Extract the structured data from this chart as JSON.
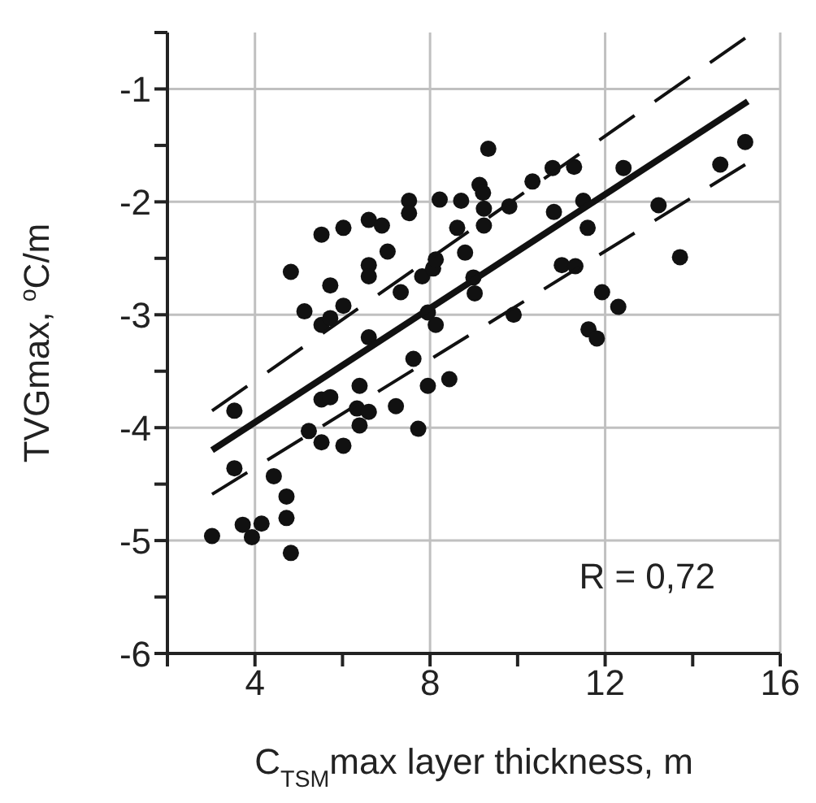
{
  "chart_data": {
    "type": "scatter",
    "xlabel": "C$_{TSM}$max layer thickness, m",
    "ylabel": "TVGmax, $^{o}$C/m",
    "xlim": [
      2,
      16
    ],
    "ylim": [
      -6,
      -0.5
    ],
    "xticks": [
      {
        "value": 2,
        "label": null
      },
      4,
      {
        "value": 6,
        "label": null
      },
      8,
      {
        "value": 10,
        "label": null
      },
      12,
      {
        "value": 14,
        "label": null
      },
      16
    ],
    "yticks": [
      -6,
      {
        "value": -5.5,
        "label": null
      },
      -5,
      {
        "value": -4.5,
        "label": null
      },
      -4,
      {
        "value": -3.5,
        "label": null
      },
      -3,
      {
        "value": -2.5,
        "label": null
      },
      -2,
      {
        "value": -1.5,
        "label": null
      },
      -1,
      {
        "value": -0.5,
        "label": null
      }
    ],
    "grid": true,
    "annotations": [
      "R = 0,72"
    ],
    "series": [
      {
        "color": "#111111",
        "marker": "circle",
        "x": [
          3.02,
          3.53,
          3.53,
          3.72,
          3.93,
          4.15,
          4.43,
          4.72,
          4.72,
          4.82,
          4.82,
          5.13,
          5.23,
          5.52,
          5.52,
          5.52,
          5.52,
          5.72,
          5.72,
          5.72,
          6.02,
          6.02,
          6.02,
          6.39,
          6.33,
          6.39,
          6.6,
          6.6,
          6.6,
          6.6,
          6.6,
          6.9,
          7.03,
          7.22,
          7.33,
          7.52,
          7.52,
          7.62,
          7.73,
          7.82,
          7.95,
          7.95,
          8.07,
          8.13,
          8.13,
          8.22,
          8.44,
          8.62,
          8.71,
          8.8,
          8.99,
          9.02,
          9.13,
          9.21,
          9.23,
          9.23,
          9.33,
          9.81,
          9.91,
          10.34,
          10.8,
          10.83,
          11.01,
          11.29,
          11.32,
          11.5,
          11.6,
          11.62,
          11.81,
          11.93,
          12.3,
          12.42,
          13.22,
          13.71,
          14.63,
          15.2
        ],
        "values": [
          -4.96,
          -3.85,
          -4.36,
          -4.86,
          -4.97,
          -4.85,
          -4.43,
          -4.61,
          -4.8,
          -5.11,
          -2.62,
          -2.97,
          -4.03,
          -2.29,
          -3.09,
          -3.75,
          -4.13,
          -2.74,
          -3.03,
          -3.73,
          -2.23,
          -2.92,
          -4.16,
          -3.63,
          -3.83,
          -3.98,
          -2.16,
          -2.56,
          -2.66,
          -3.2,
          -3.86,
          -2.21,
          -2.44,
          -3.81,
          -2.8,
          -1.99,
          -2.1,
          -3.39,
          -4.01,
          -2.66,
          -2.98,
          -3.63,
          -2.59,
          -2.51,
          -3.09,
          -1.98,
          -3.57,
          -2.23,
          -1.99,
          -2.45,
          -2.67,
          -2.81,
          -1.85,
          -1.92,
          -2.06,
          -2.21,
          -1.53,
          -2.04,
          -3,
          -1.82,
          -1.7,
          -2.09,
          -2.56,
          -1.69,
          -2.57,
          -1.99,
          -2.23,
          -3.13,
          -3.21,
          -2.8,
          -2.93,
          -1.7,
          -2.03,
          -2.49,
          -1.67,
          -1.47
        ]
      },
      {
        "type": "line",
        "color": "#111111",
        "line_style": "solid",
        "x": [
          3.02,
          15.26
        ],
        "values": [
          -4.2,
          -1.11
        ]
      },
      {
        "type": "line",
        "color": "#111111",
        "line_style": "dashed",
        "x": [
          3.02,
          15.2
        ],
        "values": [
          -3.85,
          -0.55
        ]
      },
      {
        "type": "line",
        "color": "#111111",
        "line_style": "dashed",
        "x": [
          3.02,
          15.2
        ],
        "values": [
          -4.59,
          -1.67
        ]
      }
    ]
  }
}
